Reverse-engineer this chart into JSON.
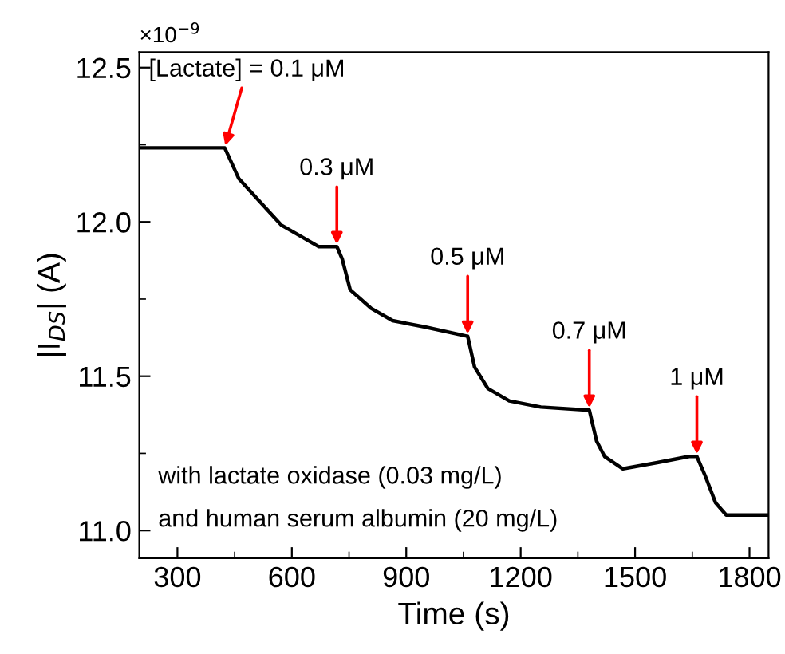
{
  "chart_data": {
    "type": "line",
    "xlabel": "Time (s)",
    "ylabel": "|I$_{DS}$| (A)",
    "x": [
      200,
      300,
      424,
      461,
      572,
      670,
      718,
      732,
      753,
      808,
      864,
      947,
      1058,
      1061,
      1079,
      1114,
      1170,
      1253,
      1378,
      1380,
      1399,
      1420,
      1468,
      1558,
      1642,
      1662,
      1683,
      1711,
      1739,
      1850
    ],
    "series": [
      {
        "color": "#000000",
        "values": [
          12.24,
          12.24,
          12.24,
          12.14,
          11.99,
          11.92,
          11.92,
          11.88,
          11.78,
          11.72,
          11.68,
          11.66,
          11.63,
          11.63,
          11.53,
          11.46,
          11.42,
          11.4,
          11.39,
          11.39,
          11.29,
          11.24,
          11.2,
          11.22,
          11.24,
          11.24,
          11.18,
          11.09,
          11.05,
          11.05
        ]
      }
    ],
    "xlim": [
      200,
      1850
    ],
    "ylim": [
      10.91,
      12.55
    ],
    "xticks": [
      300,
      600,
      900,
      1200,
      1500,
      1800
    ],
    "yticks": [
      {
        "value": 11.0,
        "label": "11.0"
      },
      {
        "value": 11.5,
        "label": "11.5"
      },
      {
        "value": 12.0,
        "label": "12.0"
      },
      {
        "value": 12.5,
        "label": "12.5"
      }
    ],
    "grid": false,
    "legend": false,
    "marker": "none",
    "line_style": "solid",
    "annotations": [
      {
        "text": "[Lactate] = 0.1 μM",
        "x": 424,
        "y": 12.24
      },
      {
        "text": "0.3 μM",
        "x": 718,
        "y": 11.92
      },
      {
        "text": "0.5 μM",
        "x": 1061,
        "y": 11.63
      },
      {
        "text": "0.7 μM",
        "x": 1380,
        "y": 11.39
      },
      {
        "text": "1 μM",
        "x": 1662,
        "y": 11.24
      },
      "with lactate oxidase (0.03 mg/L)",
      "and human serum albumin (20 mg/L)",
      "×10$^{−9}$"
    ]
  }
}
